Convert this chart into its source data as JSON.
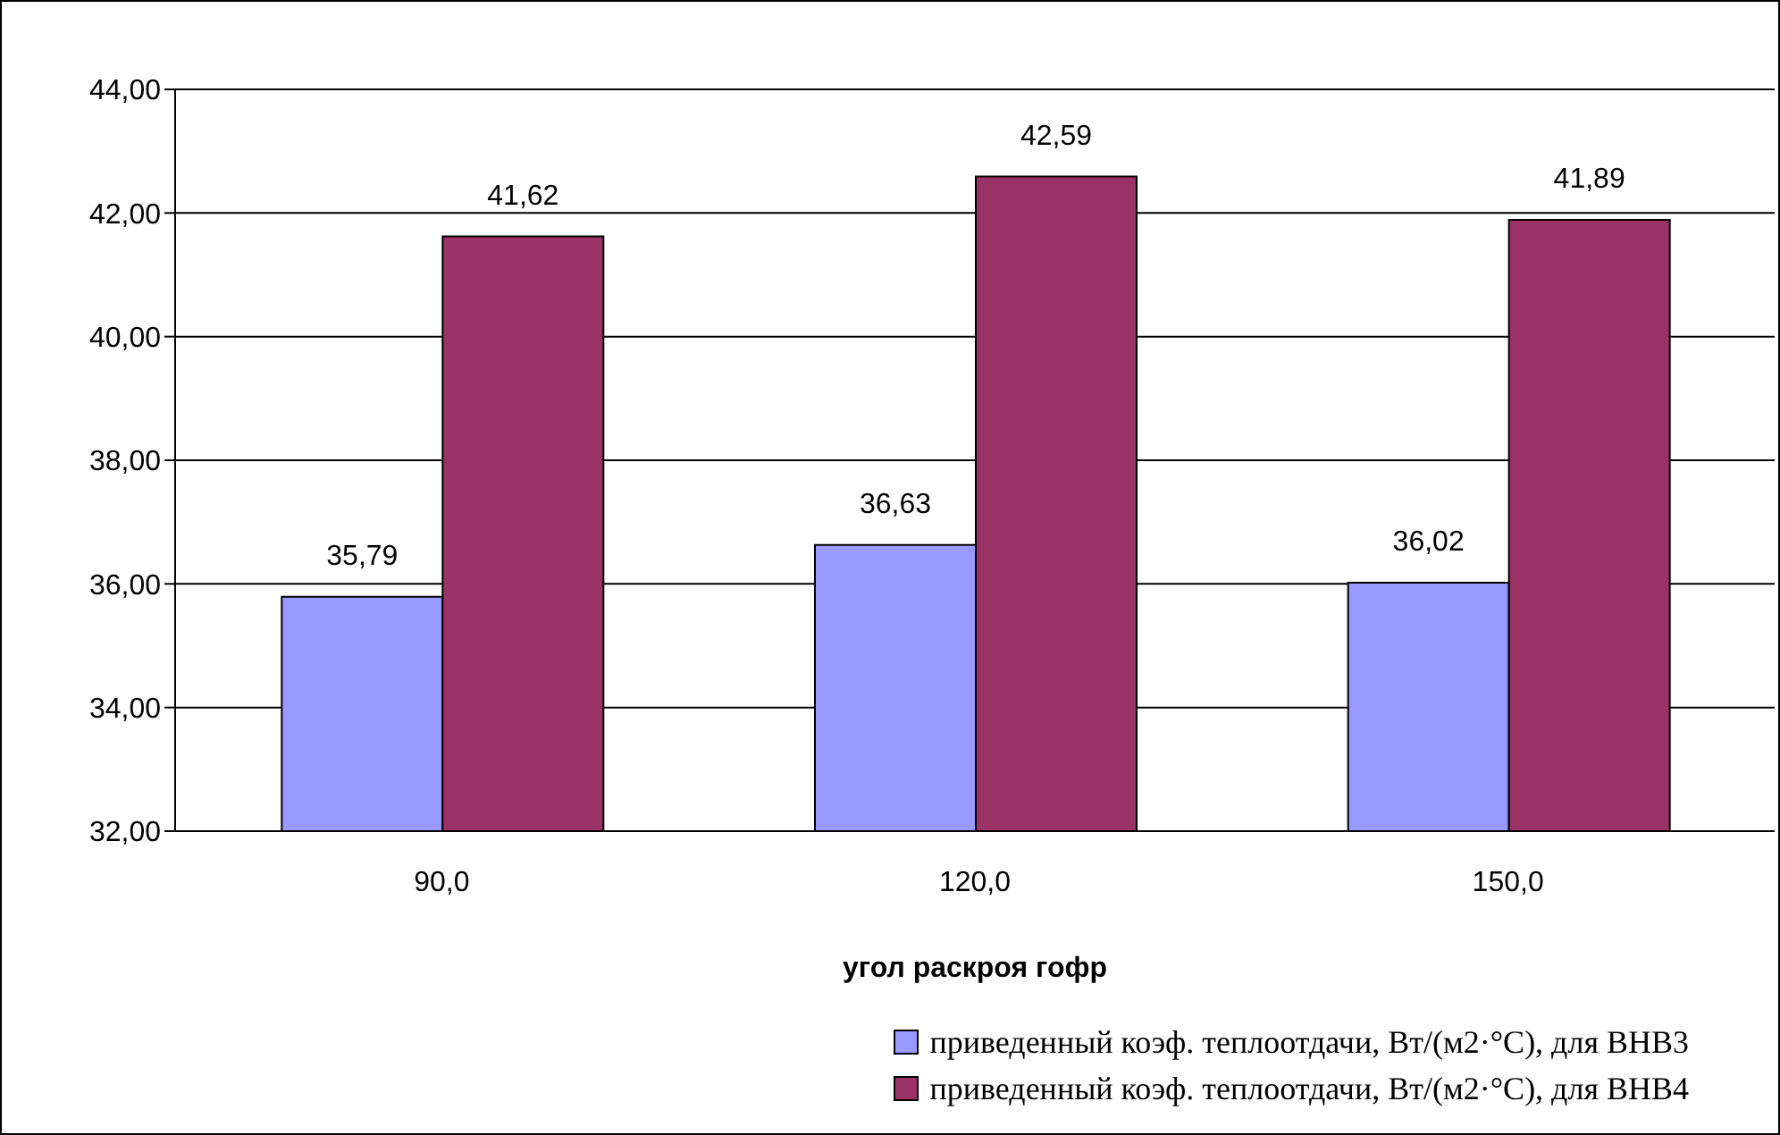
{
  "chart_data": {
    "type": "bar",
    "xlabel": "угол раскроя гофр",
    "categories": [
      "90,0",
      "120,0",
      "150,0"
    ],
    "series": [
      {
        "name": "приведенный коэф. теплоотдачи, Вт/(м2·°С), для ВНВ3",
        "color": "#9999ff",
        "values": [
          35.79,
          36.63,
          36.02
        ],
        "value_labels": [
          "35,79",
          "36,63",
          "36,02"
        ]
      },
      {
        "name": "приведенный коэф. теплоотдачи, Вт/(м2·°С), для ВНВ4",
        "color": "#993366",
        "values": [
          41.62,
          42.59,
          41.89
        ],
        "value_labels": [
          "41,62",
          "42,59",
          "41,89"
        ]
      }
    ],
    "ylim": [
      32,
      44
    ],
    "yticks": [
      {
        "value": 32,
        "label": "32,00"
      },
      {
        "value": 34,
        "label": "34,00"
      },
      {
        "value": 36,
        "label": "36,00"
      },
      {
        "value": 38,
        "label": "38,00"
      },
      {
        "value": 40,
        "label": "40,00"
      },
      {
        "value": 42,
        "label": "42,00"
      },
      {
        "value": 44,
        "label": "44,00"
      }
    ],
    "grid": "y",
    "legend": "bottom right"
  }
}
